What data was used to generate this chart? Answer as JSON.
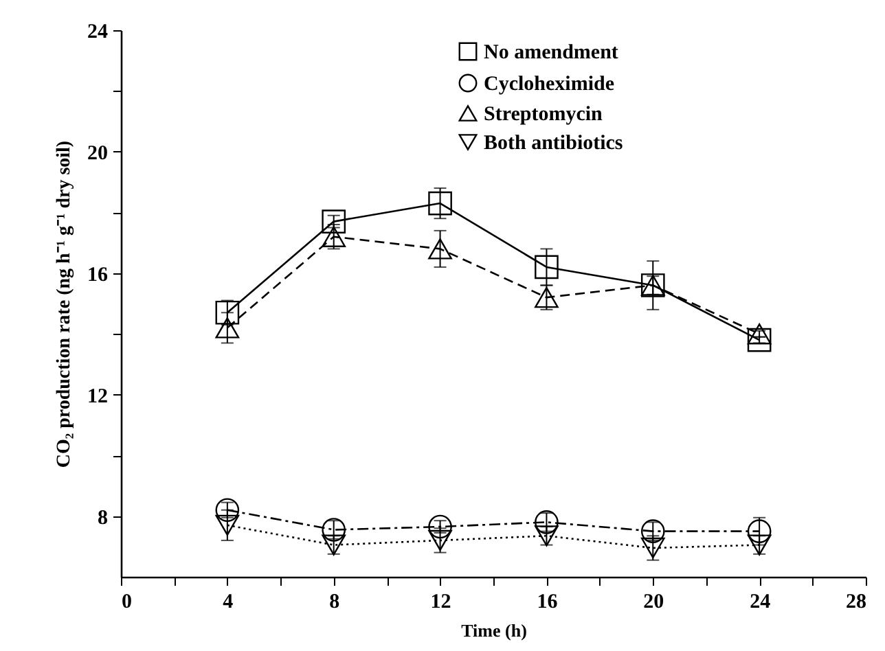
{
  "chart_data": {
    "type": "line",
    "xlabel": "Time (h)",
    "ylabel": "CO₂ production rate (ng h⁻¹ g⁻¹ dry soil)",
    "x": [
      4,
      8,
      12,
      16,
      20,
      24
    ],
    "xlim": [
      0,
      28
    ],
    "xticks": [
      0,
      {
        "value": 2,
        "label": null
      },
      4,
      {
        "value": 6,
        "label": null
      },
      8,
      {
        "value": 10,
        "label": null
      },
      12,
      {
        "value": 14,
        "label": null
      },
      16,
      {
        "value": 18,
        "label": null
      },
      20,
      {
        "value": 22,
        "label": null
      },
      24,
      {
        "value": 26,
        "label": null
      },
      28
    ],
    "ylim": [
      6,
      24
    ],
    "yticks": [
      8,
      {
        "value": 10,
        "label": null
      },
      12,
      {
        "value": 14,
        "label": null
      },
      16,
      {
        "value": 18,
        "label": null
      },
      20,
      {
        "value": 22,
        "label": null
      },
      24
    ],
    "legend": "top right",
    "grid": false,
    "series": [
      {
        "name": "No amendment",
        "color": "#000000",
        "marker": "square",
        "line_style": "solid",
        "values": [
          14.7,
          17.7,
          18.3,
          16.2,
          15.6,
          13.8
        ],
        "errors": [
          0.4,
          0.2,
          0.5,
          0.6,
          0.8,
          0.1
        ]
      },
      {
        "name": "Cycloheximide",
        "color": "#000000",
        "marker": "circle",
        "line_style": "dashdot",
        "values": [
          8.2,
          7.55,
          7.65,
          7.8,
          7.5,
          7.5
        ],
        "errors": [
          0.25,
          0.3,
          0.2,
          0.3,
          0.3,
          0.45
        ]
      },
      {
        "name": "Streptomycin",
        "color": "#000000",
        "marker": "triangle",
        "line_style": "dashed",
        "values": [
          14.2,
          17.2,
          16.8,
          15.2,
          15.6,
          14.0
        ],
        "errors": [
          0.5,
          0.4,
          0.6,
          0.4,
          0.3,
          0.1
        ]
      },
      {
        "name": "Both antibiotics",
        "color": "#000000",
        "marker": "triangle-down",
        "line_style": "dotted",
        "values": [
          7.7,
          7.05,
          7.2,
          7.35,
          6.95,
          7.05
        ],
        "errors": [
          0.5,
          0.3,
          0.4,
          0.3,
          0.4,
          0.3
        ]
      }
    ]
  }
}
